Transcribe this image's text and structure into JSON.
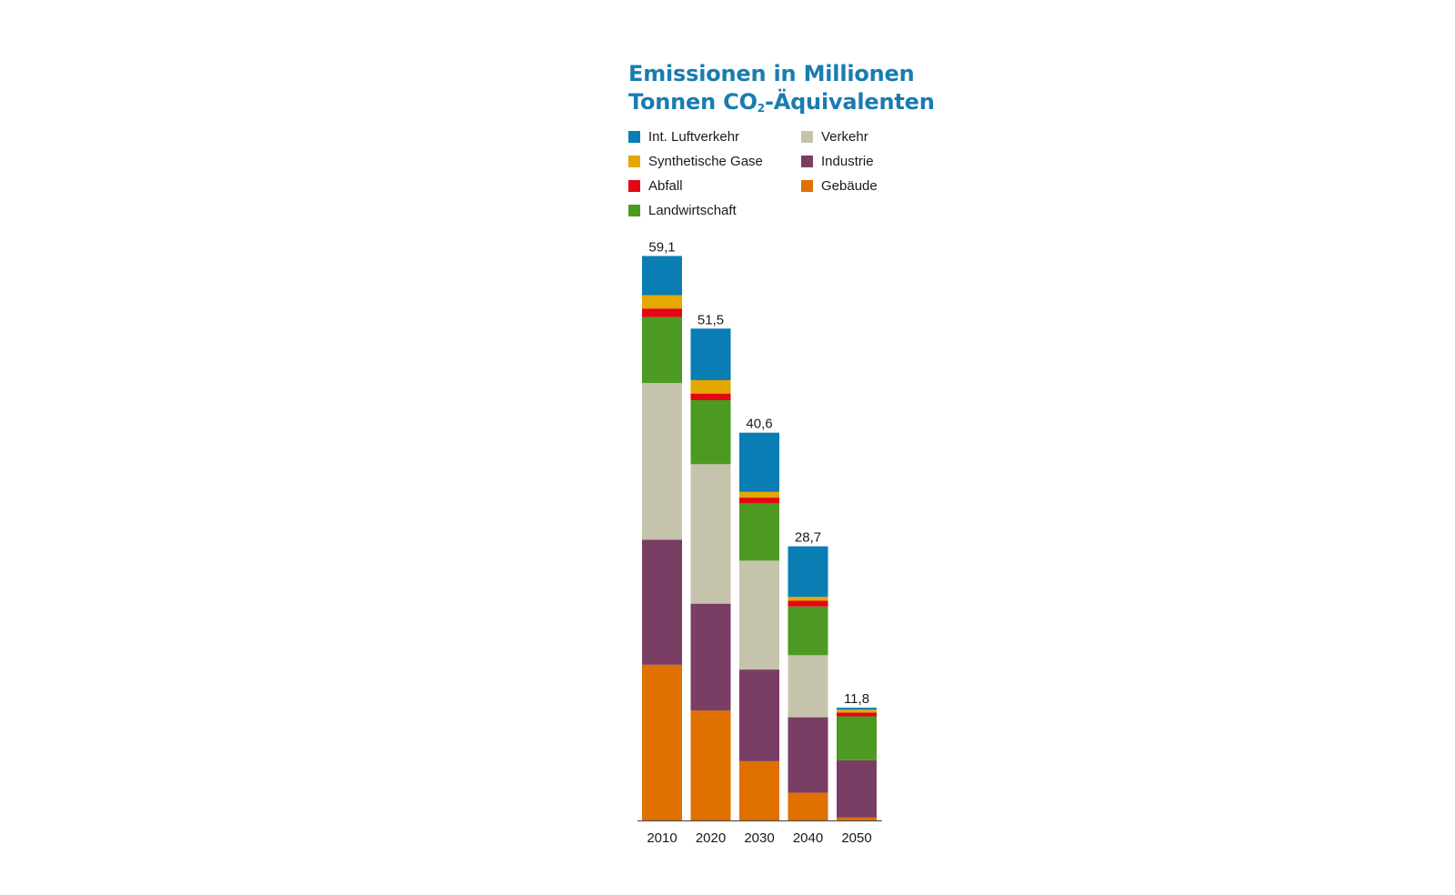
{
  "chart_data": {
    "type": "bar",
    "stacked": true,
    "title_line1": "Emissionen in Millionen",
    "title_line2_prefix": "Tonnen CO",
    "title_line2_sub": "2",
    "title_line2_suffix": "-Äquivalenten",
    "xlabel": "",
    "ylabel": "",
    "ylim": [
      0,
      60
    ],
    "categories": [
      "2010",
      "2020",
      "2030",
      "2040",
      "2050"
    ],
    "totals": [
      59.1,
      51.5,
      40.6,
      28.7,
      11.8
    ],
    "total_labels": [
      "59,1",
      "51,5",
      "40,6",
      "28,7",
      "11,8"
    ],
    "series": [
      {
        "name": "Gebäude",
        "color": "#e07000",
        "values": [
          16.3,
          11.5,
          6.2,
          2.9,
          0.3
        ]
      },
      {
        "name": "Industrie",
        "color": "#7a3d63",
        "values": [
          13.1,
          11.2,
          9.6,
          7.9,
          6.0
        ]
      },
      {
        "name": "Verkehr",
        "color": "#c6c3ad",
        "values": [
          16.4,
          14.6,
          11.4,
          6.5,
          0.0
        ]
      },
      {
        "name": "Landwirtschaft",
        "color": "#4c9a22",
        "values": [
          6.9,
          6.7,
          6.0,
          5.1,
          4.6
        ]
      },
      {
        "name": "Abfall",
        "color": "#e30613",
        "values": [
          0.9,
          0.7,
          0.6,
          0.6,
          0.4
        ]
      },
      {
        "name": "Synthetische Gase",
        "color": "#e5a800",
        "values": [
          1.4,
          1.4,
          0.6,
          0.4,
          0.3
        ]
      },
      {
        "name": "Int. Luftverkehr",
        "color": "#0a7db4",
        "values": [
          4.1,
          5.4,
          6.2,
          5.3,
          0.2
        ]
      }
    ],
    "legend": [
      {
        "name": "Int. Luftverkehr",
        "color": "#0a7db4"
      },
      {
        "name": "Synthetische Gase",
        "color": "#e5a800"
      },
      {
        "name": "Abfall",
        "color": "#e30613"
      },
      {
        "name": "Landwirtschaft",
        "color": "#4c9a22"
      },
      {
        "name": "Verkehr",
        "color": "#c6c3ad"
      },
      {
        "name": "Industrie",
        "color": "#7a3d63"
      },
      {
        "name": "Gebäude",
        "color": "#e07000"
      }
    ],
    "legend_placement": "top",
    "grid": false,
    "axis_color": "#555555"
  }
}
